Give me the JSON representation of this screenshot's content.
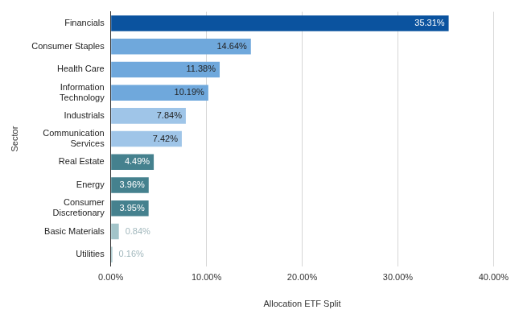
{
  "chart_data": {
    "type": "bar",
    "orientation": "horizontal",
    "x_label": "Allocation ETF Split",
    "y_label": "Sector",
    "categories": [
      "Financials",
      "Consumer Staples",
      "Health Care",
      "Information Technology",
      "Industrials",
      "Communication Services",
      "Real Estate",
      "Energy",
      "Consumer Discretionary",
      "Basic Materials",
      "Utilities"
    ],
    "values": [
      35.31,
      14.64,
      11.38,
      10.19,
      7.84,
      7.42,
      4.49,
      3.96,
      3.95,
      0.84,
      0.16
    ],
    "value_labels": [
      "35.31%",
      "14.64%",
      "11.38%",
      "10.19%",
      "7.84%",
      "7.42%",
      "4.49%",
      "3.96%",
      "3.95%",
      "0.84%",
      "0.16%"
    ],
    "colors": [
      "#0b539f",
      "#6fa8dc",
      "#6fa8dc",
      "#6fa8dc",
      "#9fc5e8",
      "#9fc5e8",
      "#45818e",
      "#45818e",
      "#45818e",
      "#a2c4c9",
      "#a2c4c9"
    ],
    "xlim": [
      0,
      40
    ],
    "xticks": [
      {
        "value": 0,
        "label": "0.00%"
      },
      {
        "value": 10,
        "label": "10.00%"
      },
      {
        "value": 20,
        "label": "20.00%"
      },
      {
        "value": 30,
        "label": "30.00%"
      },
      {
        "value": 40,
        "label": "40.00%"
      }
    ],
    "grid": true,
    "data_labels": true
  }
}
